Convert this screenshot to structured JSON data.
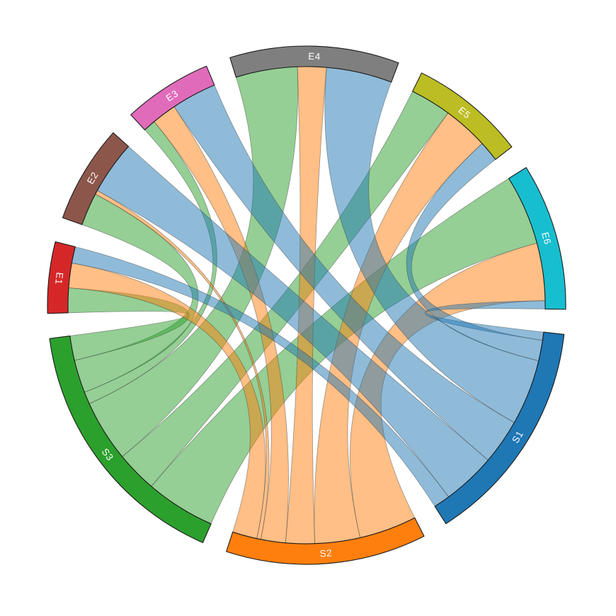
{
  "figure": {
    "background_color": "#ffffff",
    "title": ""
  },
  "chart_data": {
    "type": "chord",
    "title": "",
    "description": "Circular chord diagram showing flows from source segments S1-S3 to target segments E1-E6; ribbons are colored by source segment",
    "sources": [
      "S1",
      "S2",
      "S3"
    ],
    "targets": [
      "E1",
      "E2",
      "E3",
      "E4",
      "E5",
      "E6"
    ],
    "matrix": {
      "S1": {
        "E1": 4,
        "E2": 13,
        "E3": 11,
        "E4": 16,
        "E5": 5,
        "E6": 2
      },
      "S2": {
        "E1": 6,
        "E2": 1,
        "E3": 6,
        "E4": 7,
        "E5": 11,
        "E6": 14
      },
      "S3": {
        "E1": 6,
        "E2": 8,
        "E3": 3,
        "E4": 15,
        "E5": 10,
        "E6": 17
      }
    },
    "group_totals": {
      "S1": 51,
      "S2": 45,
      "S3": 59,
      "E1": 16,
      "E2": 22,
      "E3": 20,
      "E4": 38,
      "E5": 26,
      "E6": 33
    },
    "group_colors": {
      "S1": "#1f77b4",
      "S2": "#ff7f0e",
      "S3": "#2ca02c",
      "E1": "#d62728",
      "E2": "#8c564b",
      "E3": "#e06bba",
      "E4": "#7f7f7f",
      "E5": "#bcbd22",
      "E6": "#17becf"
    },
    "labels": {
      "S1": "S1",
      "S2": "S2",
      "S3": "S3",
      "E1": "E1",
      "E2": "E2",
      "E3": "E3",
      "E4": "E4",
      "E5": "E5",
      "E6": "E6"
    },
    "layout": {
      "order_clockwise_from_top": [
        "E4",
        "E5",
        "E6",
        "S1",
        "S2",
        "S3",
        "E1",
        "E2",
        "E3"
      ],
      "start_angle_deg": -17.2,
      "gap_deg": 5.56,
      "degrees_per_unit": 1,
      "source_ribbon_order": [
        "E6",
        "E5",
        "E4",
        "E3",
        "E2",
        "E1"
      ],
      "target_ribbon_order": [
        "S3",
        "S2",
        "S1"
      ],
      "ribbon_draw_order": [
        "S3",
        "S2",
        "S1"
      ],
      "ribbon_fill_opacity": 0.5,
      "ribbon_stroke_color": "#3f3f3f",
      "ribbon_stroke_opacity": 0.55,
      "arc_stroke_color": "#1b1b1b",
      "label_color": "#ffffff",
      "label_flip_min_deg": 95,
      "label_flip_max_deg": 285
    }
  }
}
